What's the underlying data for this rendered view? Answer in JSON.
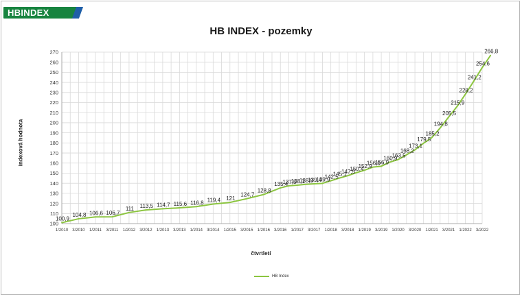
{
  "brand": {
    "logo_text": "HBINDEX",
    "color_green": "#17843f",
    "color_blue": "#1f5fa8"
  },
  "chart_data": {
    "type": "line",
    "title": "HB INDEX - pozemky",
    "xlabel": "čtvrtletí",
    "ylabel": "indexová hodnota",
    "ylim": [
      100,
      270
    ],
    "ytick_step": 10,
    "grid": true,
    "legend_placement": "bottom",
    "line_color": "#8cc540",
    "x_tick_labels": [
      "1/2010",
      "3/2010",
      "1/2011",
      "3/2011",
      "1/2012",
      "3/2012",
      "1/2013",
      "3/2013",
      "1/2014",
      "3/2014",
      "1/2015",
      "3/2015",
      "1/2016",
      "3/2016",
      "1/2017",
      "3/2017",
      "1/2018",
      "3/2018",
      "1/2019",
      "3/2019",
      "1/2020",
      "3/2020",
      "1/2021",
      "3/2021",
      "1/2022",
      "3/2022"
    ],
    "series": [
      {
        "name": "HB Index",
        "points": [
          {
            "x": "1/2010",
            "y": 100.9,
            "label": "100,9"
          },
          {
            "x": "3/2010",
            "y": 104.8,
            "label": "104,8"
          },
          {
            "x": "1/2011",
            "y": 106.6,
            "label": "106,6"
          },
          {
            "x": "3/2011",
            "y": 106.7,
            "label": "106,7"
          },
          {
            "x": "1/2012",
            "y": 111.0,
            "label": "111"
          },
          {
            "x": "3/2012",
            "y": 113.5,
            "label": "113,5"
          },
          {
            "x": "1/2013",
            "y": 114.7,
            "label": "114,7"
          },
          {
            "x": "3/2013",
            "y": 115.6,
            "label": "115,6"
          },
          {
            "x": "1/2014",
            "y": 116.8,
            "label": "116,8"
          },
          {
            "x": "3/2014",
            "y": 119.4,
            "label": "119,4"
          },
          {
            "x": "1/2015",
            "y": 121.0,
            "label": "121"
          },
          {
            "x": "3/2015",
            "y": 124.7,
            "label": "124,7"
          },
          {
            "x": "1/2016",
            "y": 128.8,
            "label": "128,8"
          },
          {
            "x": "3/2016",
            "y": 135.4,
            "label": "135,4"
          },
          {
            "x": "4/2016",
            "y": 137.5,
            "label": "137,5"
          },
          {
            "x": "1/2017",
            "y": 138.1,
            "label": "138,1"
          },
          {
            "x": "2/2017",
            "y": 138.9,
            "label": "138,9"
          },
          {
            "x": "3/2017",
            "y": 139.4,
            "label": "139,4"
          },
          {
            "x": "4/2017",
            "y": 139.9,
            "label": "139,9"
          },
          {
            "x": "1/2018",
            "y": 142.5,
            "label": "142,5"
          },
          {
            "x": "2/2018",
            "y": 145.1,
            "label": "145,1"
          },
          {
            "x": "3/2018",
            "y": 147.5,
            "label": "147,5"
          },
          {
            "x": "4/2018",
            "y": 150.4,
            "label": "150,4"
          },
          {
            "x": "1/2019",
            "y": 152.9,
            "label": "152,9"
          },
          {
            "x": "2/2019",
            "y": 156.0,
            "label": "156,0"
          },
          {
            "x": "3/2019",
            "y": 156.9,
            "label": "156,9"
          },
          {
            "x": "4/2019",
            "y": 160.9,
            "label": "160,9"
          },
          {
            "x": "1/2020",
            "y": 163.5,
            "label": "163,5"
          },
          {
            "x": "2/2020",
            "y": 168.2,
            "label": "168,2"
          },
          {
            "x": "3/2020",
            "y": 173.1,
            "label": "173,1"
          },
          {
            "x": "4/2020",
            "y": 179.5,
            "label": "179,5"
          },
          {
            "x": "1/2021",
            "y": 185.2,
            "label": "185,2"
          },
          {
            "x": "2/2021",
            "y": 194.8,
            "label": "194,8"
          },
          {
            "x": "3/2021",
            "y": 205.5,
            "label": "205,5"
          },
          {
            "x": "4/2021",
            "y": 215.9,
            "label": "215,9"
          },
          {
            "x": "1/2022",
            "y": 228.2,
            "label": "228,2"
          },
          {
            "x": "2/2022",
            "y": 241.2,
            "label": "241,2"
          },
          {
            "x": "3/2022",
            "y": 254.6,
            "label": "254,6"
          },
          {
            "x": "4/2022",
            "y": 266.8,
            "label": "266,8"
          }
        ]
      }
    ]
  }
}
